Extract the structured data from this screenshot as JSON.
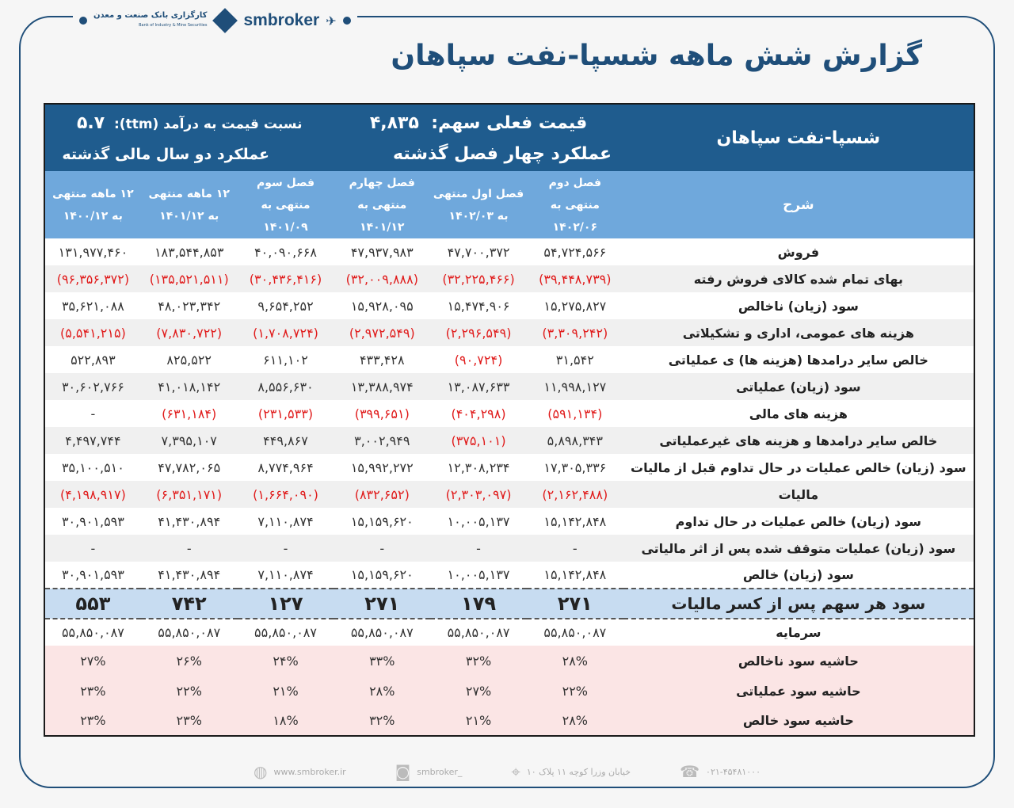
{
  "brand": {
    "name": "smbroker",
    "bank_fa": "کارگزاری بانک صنعت و معدن",
    "bank_en": "Bank of Industry & Mine Securities"
  },
  "title": "گزارش شش ماهه شسپا-نفت سپاهان",
  "header": {
    "company": "شسپا-نفت سپاهان",
    "price_label": "قیمت فعلی سهم:",
    "price": "۴,۸۳۵",
    "pe_label": "نسبت  قیمت به درآمد (ttm):",
    "pe": "۵.۷",
    "quarters_title": "عملکرد چهار فصل گذشته",
    "years_title": "عملکرد دو سال مالی گذشته"
  },
  "columns": {
    "desc": "شرح",
    "cols": [
      [
        "فصل دوم",
        "منتهی به",
        "۱۴۰۲/۰۶"
      ],
      [
        "فصل اول منتهی",
        "به ۱۴۰۲/۰۳"
      ],
      [
        "فصل چهارم",
        "منتهی به",
        "۱۴۰۱/۱۲"
      ],
      [
        "فصل سوم",
        "منتهی به",
        "۱۴۰۱/۰۹"
      ],
      [
        "۱۲ ماهه منتهی",
        "به ۱۴۰۱/۱۲"
      ],
      [
        "۱۲ ماهه منتهی",
        "به ۱۴۰۰/۱۲"
      ]
    ]
  },
  "rows": [
    {
      "label": "فروش",
      "values": [
        "۵۴,۷۲۴,۵۶۶",
        "۴۷,۷۰۰,۳۷۲",
        "۴۷,۹۳۷,۹۸۳",
        "۴۰,۰۹۰,۶۶۸",
        "۱۸۳,۵۴۴,۸۵۳",
        "۱۳۱,۹۷۷,۴۶۰"
      ]
    },
    {
      "label": "بهای تمام شده کالای فروش رفته",
      "values": [
        "(۳۹,۴۴۸,۷۳۹)",
        "(۳۲,۲۲۵,۴۶۶)",
        "(۳۲,۰۰۹,۸۸۸)",
        "(۳۰,۴۳۶,۴۱۶)",
        "(۱۳۵,۵۲۱,۵۱۱)",
        "(۹۶,۳۵۶,۳۷۲)"
      ]
    },
    {
      "label": "سود (زیان) ناخالص",
      "values": [
        "۱۵,۲۷۵,۸۲۷",
        "۱۵,۴۷۴,۹۰۶",
        "۱۵,۹۲۸,۰۹۵",
        "۹,۶۵۴,۲۵۲",
        "۴۸,۰۲۳,۳۴۲",
        "۳۵,۶۲۱,۰۸۸"
      ]
    },
    {
      "label": "هزینه های عمومی، اداری و تشکیلاتی",
      "values": [
        "(۳,۳۰۹,۲۴۲)",
        "(۲,۲۹۶,۵۴۹)",
        "(۲,۹۷۲,۵۴۹)",
        "(۱,۷۰۸,۷۲۴)",
        "(۷,۸۳۰,۷۲۲)",
        "(۵,۵۴۱,۲۱۵)"
      ]
    },
    {
      "label": "خالص سایر درامدها (هزینه ها) ی عملیاتی",
      "values": [
        "۳۱,۵۴۲",
        "(۹۰,۷۲۴)",
        "۴۳۳,۴۲۸",
        "۶۱۱,۱۰۲",
        "۸۲۵,۵۲۲",
        "۵۲۲,۸۹۳"
      ]
    },
    {
      "label": "سود (زیان) عملیاتی",
      "values": [
        "۱۱,۹۹۸,۱۲۷",
        "۱۳,۰۸۷,۶۳۳",
        "۱۳,۳۸۸,۹۷۴",
        "۸,۵۵۶,۶۳۰",
        "۴۱,۰۱۸,۱۴۲",
        "۳۰,۶۰۲,۷۶۶"
      ]
    },
    {
      "label": "هزینه های مالی",
      "values": [
        "(۵۹۱,۱۳۴)",
        "(۴۰۴,۲۹۸)",
        "(۳۹۹,۶۵۱)",
        "(۲۳۱,۵۳۳)",
        "(۶۳۱,۱۸۴)",
        "-"
      ]
    },
    {
      "label": "خالص سایر درامدها و هزینه های غیرعملیاتی",
      "values": [
        "۵,۸۹۸,۳۴۳",
        "(۳۷۵,۱۰۱)",
        "۳,۰۰۲,۹۴۹",
        "۴۴۹,۸۶۷",
        "۷,۳۹۵,۱۰۷",
        "۴,۴۹۷,۷۴۴"
      ]
    },
    {
      "label": "سود (زیان) خالص عملیات در حال تداوم قبل از مالیات",
      "values": [
        "۱۷,۳۰۵,۳۳۶",
        "۱۲,۳۰۸,۲۳۴",
        "۱۵,۹۹۲,۲۷۲",
        "۸,۷۷۴,۹۶۴",
        "۴۷,۷۸۲,۰۶۵",
        "۳۵,۱۰۰,۵۱۰"
      ]
    },
    {
      "label": "مالیات",
      "values": [
        "(۲,۱۶۲,۴۸۸)",
        "(۲,۳۰۳,۰۹۷)",
        "(۸۳۲,۶۵۲)",
        "(۱,۶۶۴,۰۹۰)",
        "(۶,۳۵۱,۱۷۱)",
        "(۴,۱۹۸,۹۱۷)"
      ]
    },
    {
      "label": "سود (زیان) خالص عملیات در حال تداوم",
      "values": [
        "۱۵,۱۴۲,۸۴۸",
        "۱۰,۰۰۵,۱۳۷",
        "۱۵,۱۵۹,۶۲۰",
        "۷,۱۱۰,۸۷۴",
        "۴۱,۴۳۰,۸۹۴",
        "۳۰,۹۰۱,۵۹۳"
      ]
    },
    {
      "label": "سود (زیان) عملیات متوقف شده پس از اثر مالیاتی",
      "values": [
        "-",
        "-",
        "-",
        "-",
        "-",
        "-"
      ]
    },
    {
      "label": "سود (زیان) خالص",
      "values": [
        "۱۵,۱۴۲,۸۴۸",
        "۱۰,۰۰۵,۱۳۷",
        "۱۵,۱۵۹,۶۲۰",
        "۷,۱۱۰,۸۷۴",
        "۴۱,۴۳۰,۸۹۴",
        "۳۰,۹۰۱,۵۹۳"
      ]
    }
  ],
  "eps": {
    "label": "سود هر سهم پس از کسر مالیات",
    "values": [
      "۲۷۱",
      "۱۷۹",
      "۲۷۱",
      "۱۲۷",
      "۷۴۲",
      "۵۵۳"
    ]
  },
  "capital": {
    "label": "سرمایه",
    "values": [
      "۵۵,۸۵۰,۰۸۷",
      "۵۵,۸۵۰,۰۸۷",
      "۵۵,۸۵۰,۰۸۷",
      "۵۵,۸۵۰,۰۸۷",
      "۵۵,۸۵۰,۰۸۷",
      "۵۵,۸۵۰,۰۸۷"
    ]
  },
  "margins": [
    {
      "label": "حاشیه سود ناخالص",
      "values": [
        "۲۸%",
        "۳۲%",
        "۳۳%",
        "۲۴%",
        "۲۶%",
        "۲۷%"
      ]
    },
    {
      "label": "حاشیه سود عملیاتی",
      "values": [
        "۲۲%",
        "۲۷%",
        "۲۸%",
        "۲۱%",
        "۲۲%",
        "۲۳%"
      ]
    },
    {
      "label": "حاشیه سود خالص",
      "values": [
        "۲۸%",
        "۲۱%",
        "۳۲%",
        "۱۸%",
        "۲۳%",
        "۲۳%"
      ]
    }
  ],
  "footer": {
    "website": "www.smbroker.ir",
    "instagram": "smbroker_",
    "address": "خیابان وزرا کوچه ۱۱ پلاک ۱۰",
    "phone": "۰۲۱-۴۵۴۸۱۰۰۰"
  },
  "colors": {
    "primary": "#1f5c8e",
    "header_light": "#6fa8dc",
    "negative": "#e01b1b",
    "eps_bg": "#c7dcf1",
    "margin_bg": "#fbe5e5"
  }
}
